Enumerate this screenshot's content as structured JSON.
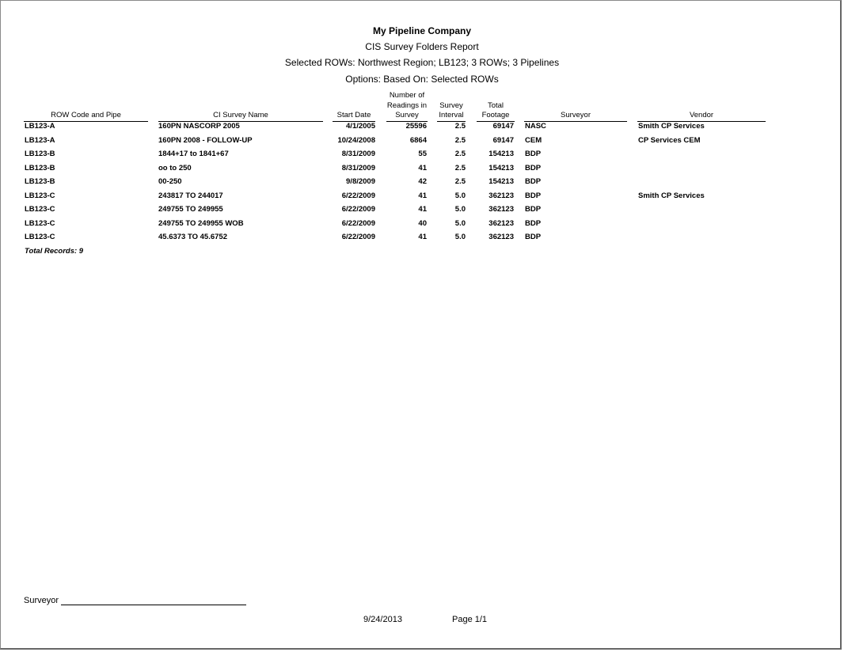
{
  "report": {
    "company": "My Pipeline Company",
    "title": "CIS Survey Folders Report",
    "selection": "Selected ROWs: Northwest Region; LB123; 3 ROWs; 3 Pipelines",
    "options": "Options: Based On: Selected ROWs"
  },
  "columns": {
    "row_code": "ROW Code and Pipe",
    "survey_name": "CI Survey Name",
    "start_date": "Start Date",
    "readings_1": "Number of",
    "readings_2": "Readings in",
    "readings_3": "Survey",
    "interval_1": "Survey",
    "interval_2": "Interval",
    "footage_1": "Total",
    "footage_2": "Footage",
    "surveyor": "Surveyor",
    "vendor": "Vendor"
  },
  "rows": [
    {
      "row_code": "LB123-A",
      "survey_name": "160PN NASCORP 2005",
      "start_date": "4/1/2005",
      "readings": "25596",
      "interval": "2.5",
      "footage": "69147",
      "surveyor": "NASC",
      "vendor": "Smith CP Services"
    },
    {
      "row_code": "LB123-A",
      "survey_name": "160PN 2008 - FOLLOW-UP",
      "start_date": "10/24/2008",
      "readings": "6864",
      "interval": "2.5",
      "footage": "69147",
      "surveyor": "CEM",
      "vendor": "CP Services CEM"
    },
    {
      "row_code": "LB123-B",
      "survey_name": "1844+17 to 1841+67",
      "start_date": "8/31/2009",
      "readings": "55",
      "interval": "2.5",
      "footage": "154213",
      "surveyor": "BDP",
      "vendor": ""
    },
    {
      "row_code": "LB123-B",
      "survey_name": "oo to 250",
      "start_date": "8/31/2009",
      "readings": "41",
      "interval": "2.5",
      "footage": "154213",
      "surveyor": "BDP",
      "vendor": ""
    },
    {
      "row_code": "LB123-B",
      "survey_name": "00-250",
      "start_date": "9/8/2009",
      "readings": "42",
      "interval": "2.5",
      "footage": "154213",
      "surveyor": "BDP",
      "vendor": ""
    },
    {
      "row_code": "LB123-C",
      "survey_name": "243817 TO 244017",
      "start_date": "6/22/2009",
      "readings": "41",
      "interval": "5.0",
      "footage": "362123",
      "surveyor": "BDP",
      "vendor": "Smith CP Services"
    },
    {
      "row_code": "LB123-C",
      "survey_name": "249755 TO 249955",
      "start_date": "6/22/2009",
      "readings": "41",
      "interval": "5.0",
      "footage": "362123",
      "surveyor": "BDP",
      "vendor": ""
    },
    {
      "row_code": "LB123-C",
      "survey_name": "249755 TO 249955 WOB",
      "start_date": "6/22/2009",
      "readings": "40",
      "interval": "5.0",
      "footage": "362123",
      "surveyor": "BDP",
      "vendor": ""
    },
    {
      "row_code": "LB123-C",
      "survey_name": "45.6373 TO 45.6752",
      "start_date": "6/22/2009",
      "readings": "41",
      "interval": "5.0",
      "footage": "362123",
      "surveyor": "BDP",
      "vendor": ""
    }
  ],
  "total_records": "Total Records: 9",
  "footer": {
    "surveyor_label": "Surveyor",
    "date": "9/24/2013",
    "page": "Page 1/1"
  }
}
